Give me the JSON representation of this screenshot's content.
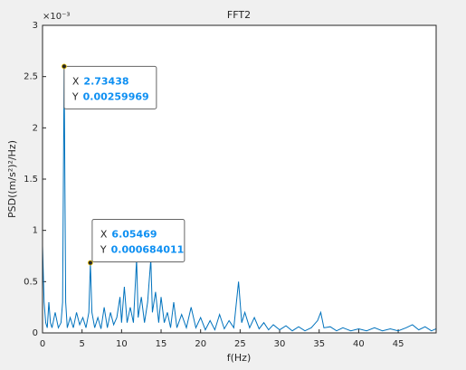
{
  "chart_data": {
    "type": "line",
    "title": "FFT2",
    "x_label": "f(Hz)",
    "y_label": "PSD((m/s²)²/Hz)",
    "y_exponent_label": "×10⁻³",
    "xlim": [
      0,
      49.8
    ],
    "xticks": [
      0,
      5,
      10,
      15,
      20,
      25,
      30,
      35,
      40,
      45
    ],
    "ylim": [
      0,
      0.003
    ],
    "yticks": [
      0,
      {
        "value": 0.0005,
        "label": "0.5"
      },
      {
        "value": 0.001,
        "label": "1"
      },
      {
        "value": 0.0015,
        "label": "1.5"
      },
      {
        "value": 0.002,
        "label": "2"
      },
      {
        "value": 0.0025,
        "label": "2.5"
      },
      {
        "value": 0.003,
        "label": "3"
      }
    ],
    "grid": false,
    "series": [
      {
        "color": "#0072bd",
        "x": [
          0,
          0.2,
          0.4,
          0.6,
          0.8,
          1.0,
          1.2,
          1.6,
          2.0,
          2.34,
          2.54,
          2.73438,
          2.93,
          3.13,
          3.5,
          3.9,
          4.3,
          4.7,
          5.1,
          5.5,
          5.86,
          6.05469,
          6.25,
          6.6,
          7.0,
          7.4,
          7.8,
          8.2,
          8.6,
          9.0,
          9.4,
          9.8,
          10.0,
          10.35,
          10.7,
          11.1,
          11.5,
          11.9,
          12.1,
          12.5,
          12.9,
          13.3,
          13.7,
          13.9,
          14.3,
          14.7,
          15.0,
          15.4,
          15.8,
          16.2,
          16.6,
          17.0,
          17.6,
          18.2,
          18.8,
          19.4,
          20.0,
          20.6,
          21.2,
          21.8,
          22.4,
          23.0,
          23.6,
          24.2,
          24.8,
          25.2,
          25.6,
          26.2,
          26.8,
          27.4,
          28.0,
          28.6,
          29.2,
          30.0,
          30.8,
          31.6,
          32.4,
          33.2,
          34.0,
          34.8,
          35.2,
          35.6,
          36.4,
          37.2,
          38.0,
          39.0,
          40.0,
          41.0,
          42.0,
          43.0,
          44.0,
          45.0,
          46.0,
          46.8,
          47.6,
          48.4,
          49.2,
          49.8
        ],
        "values": [
          0.00085,
          0.0003,
          0.0001,
          5e-05,
          0.0003,
          0.0001,
          5e-05,
          0.0002,
          5e-05,
          0.0001,
          0.0003,
          0.00259969,
          0.0003,
          5e-05,
          0.00015,
          5e-05,
          0.0002,
          8e-05,
          0.00015,
          5e-05,
          0.0002,
          0.000684011,
          0.0002,
          5e-05,
          0.00015,
          4e-05,
          0.00025,
          5e-05,
          0.0002,
          8e-05,
          0.00015,
          0.00035,
          0.0001,
          0.00045,
          0.0001,
          0.00025,
          0.0001,
          0.00072,
          0.00015,
          0.00035,
          0.0001,
          0.0003,
          0.00072,
          0.0002,
          0.0004,
          0.0001,
          0.00035,
          0.0001,
          0.0002,
          5e-05,
          0.0003,
          5e-05,
          0.00018,
          5e-05,
          0.00025,
          5e-05,
          0.00015,
          3e-05,
          0.00012,
          3e-05,
          0.00018,
          4e-05,
          0.00012,
          5e-05,
          0.0005,
          0.0001,
          0.0002,
          5e-05,
          0.00015,
          4e-05,
          0.0001,
          3e-05,
          8e-05,
          3e-05,
          7e-05,
          2e-05,
          6e-05,
          2e-05,
          5e-05,
          0.00012,
          0.0002,
          5e-05,
          6e-05,
          2e-05,
          5e-05,
          2e-05,
          4e-05,
          2e-05,
          5e-05,
          2e-05,
          4e-05,
          2e-05,
          5e-05,
          8e-05,
          3e-05,
          6e-05,
          2e-05,
          4e-05
        ]
      }
    ],
    "datatips": [
      {
        "x_name": "X",
        "x": 2.73438,
        "y_name": "Y",
        "y": 0.00259969
      },
      {
        "x_name": "X",
        "x": 6.05469,
        "y_name": "Y",
        "y": 0.000684011
      }
    ]
  }
}
